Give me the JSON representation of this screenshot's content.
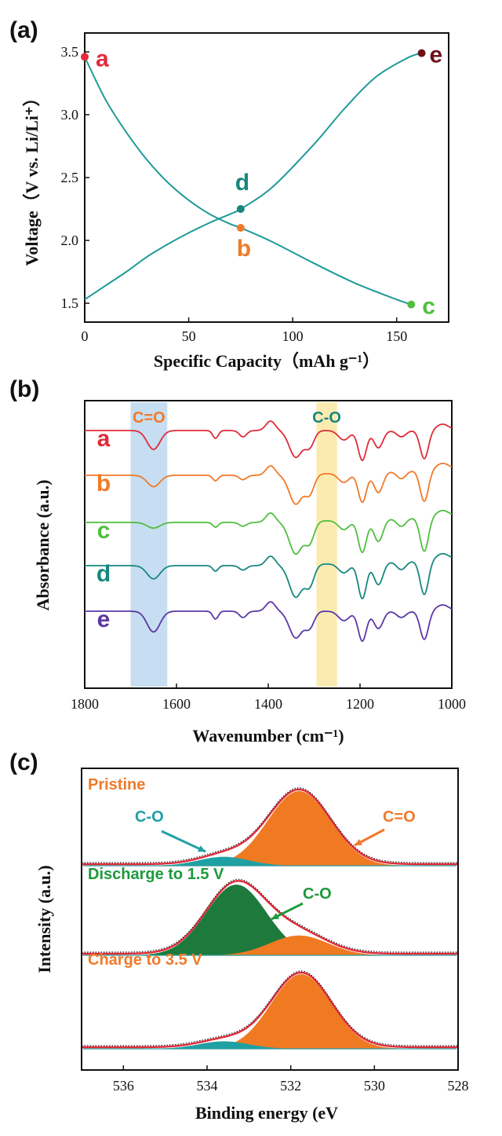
{
  "panels": {
    "a": "(a)",
    "b": "(b)",
    "c": "(c)"
  },
  "colors": {
    "teal": "#1e9b97",
    "red": "#e02b3a",
    "orange": "#f07a2a",
    "green": "#4fbf3f",
    "darkteal": "#17877e",
    "darkred": "#6e1119",
    "purple": "#5b37a6",
    "fill_orange": "#f07a22",
    "fill_green": "#1d7a3c",
    "fill_teal": "#1fa0a3",
    "band_blue": "#bdd7ef",
    "band_yellow": "#fbe7a3"
  },
  "chart_data": [
    {
      "id": "a",
      "type": "line",
      "xlabel": "Specific Capacity（mAh g⁻¹）",
      "ylabel": "Voltage（V vs. Li/Li⁺）",
      "xlim": [
        0,
        175
      ],
      "ylim": [
        1.35,
        3.65
      ],
      "xticks": [
        0,
        50,
        100,
        150
      ],
      "yticks": [
        1.5,
        2.0,
        2.5,
        3.0,
        3.5
      ],
      "series": [
        {
          "x": [
            0,
            10,
            20,
            30,
            40,
            50,
            60,
            70,
            75,
            90,
            110,
            130,
            150,
            157
          ],
          "y": [
            3.46,
            3.12,
            2.86,
            2.64,
            2.46,
            2.32,
            2.21,
            2.13,
            2.1,
            1.99,
            1.82,
            1.66,
            1.53,
            1.49
          ]
        },
        {
          "x": [
            0,
            10,
            20,
            30,
            40,
            50,
            60,
            70,
            75,
            90,
            110,
            125,
            140,
            155,
            162
          ],
          "y": [
            1.53,
            1.64,
            1.75,
            1.87,
            1.97,
            2.06,
            2.14,
            2.21,
            2.25,
            2.42,
            2.76,
            3.05,
            3.3,
            3.45,
            3.49
          ]
        }
      ],
      "points": [
        {
          "label": "a",
          "x": 0,
          "y": 3.46,
          "color": "#e02b3a"
        },
        {
          "label": "b",
          "x": 75,
          "y": 2.1,
          "color": "#f07a2a"
        },
        {
          "label": "c",
          "x": 157,
          "y": 1.49,
          "color": "#4fbf3f"
        },
        {
          "label": "d",
          "x": 75,
          "y": 2.25,
          "color": "#17877e"
        },
        {
          "label": "e",
          "x": 162,
          "y": 3.49,
          "color": "#6e1119"
        }
      ]
    },
    {
      "id": "b",
      "type": "line",
      "xlabel": "Wavenumber (cm⁻¹)",
      "ylabel": "Absorbance (a.u.)",
      "xlim": [
        1800,
        1000
      ],
      "xticks": [
        1800,
        1600,
        1400,
        1200,
        1000
      ],
      "bands": [
        {
          "label": "C=O",
          "from": 1700,
          "to": 1620,
          "color": "#bdd7ef",
          "label_color": "#f07a2a"
        },
        {
          "label": "C-O",
          "from": 1295,
          "to": 1250,
          "color": "#fbe7a3",
          "label_color": "#17877e"
        }
      ],
      "series": [
        {
          "name": "a",
          "color": "#e02b3a"
        },
        {
          "name": "b",
          "color": "#f07a2a"
        },
        {
          "name": "c",
          "color": "#4fbf3f"
        },
        {
          "name": "d",
          "color": "#17877e"
        },
        {
          "name": "e",
          "color": "#5b37a6"
        }
      ]
    },
    {
      "id": "c",
      "type": "area",
      "xlabel": "Binding energy (eV",
      "ylabel": "Intensity (a.u.)",
      "xlim": [
        537,
        528
      ],
      "xticks": [
        536,
        534,
        532,
        530,
        528
      ],
      "spectra": [
        {
          "title": "Pristine",
          "title_color": "#f07a2a",
          "peaks": [
            {
              "center": 531.8,
              "amplitude": 1.0,
              "sigma": 0.75,
              "color": "#f07a22",
              "name": "C=O"
            },
            {
              "center": 533.6,
              "amplitude": 0.12,
              "sigma": 0.6,
              "color": "#1fa0a3",
              "name": "C-O"
            }
          ],
          "annotations": [
            {
              "text": "C-O",
              "color": "#1fa0a3"
            },
            {
              "text": "C=O",
              "color": "#f07a2a"
            }
          ]
        },
        {
          "title": "Discharge to 1.5 V",
          "title_color": "#1d9a3c",
          "peaks": [
            {
              "center": 533.3,
              "amplitude": 1.0,
              "sigma": 0.72,
              "color": "#1d7a3c",
              "name": "C-O"
            },
            {
              "center": 531.8,
              "amplitude": 0.28,
              "sigma": 0.7,
              "color": "#f07a22",
              "name": "C=O"
            }
          ],
          "annotations": [
            {
              "text": "C-O",
              "color": "#1d9a3c"
            }
          ]
        },
        {
          "title": "Charge to 3.5 V",
          "title_color": "#f07a2a",
          "peaks": [
            {
              "center": 531.75,
              "amplitude": 1.0,
              "sigma": 0.72,
              "color": "#f07a22",
              "name": "C=O"
            },
            {
              "center": 533.6,
              "amplitude": 0.1,
              "sigma": 0.6,
              "color": "#1fa0a3",
              "name": "C-O"
            }
          ],
          "annotations": []
        }
      ]
    }
  ]
}
